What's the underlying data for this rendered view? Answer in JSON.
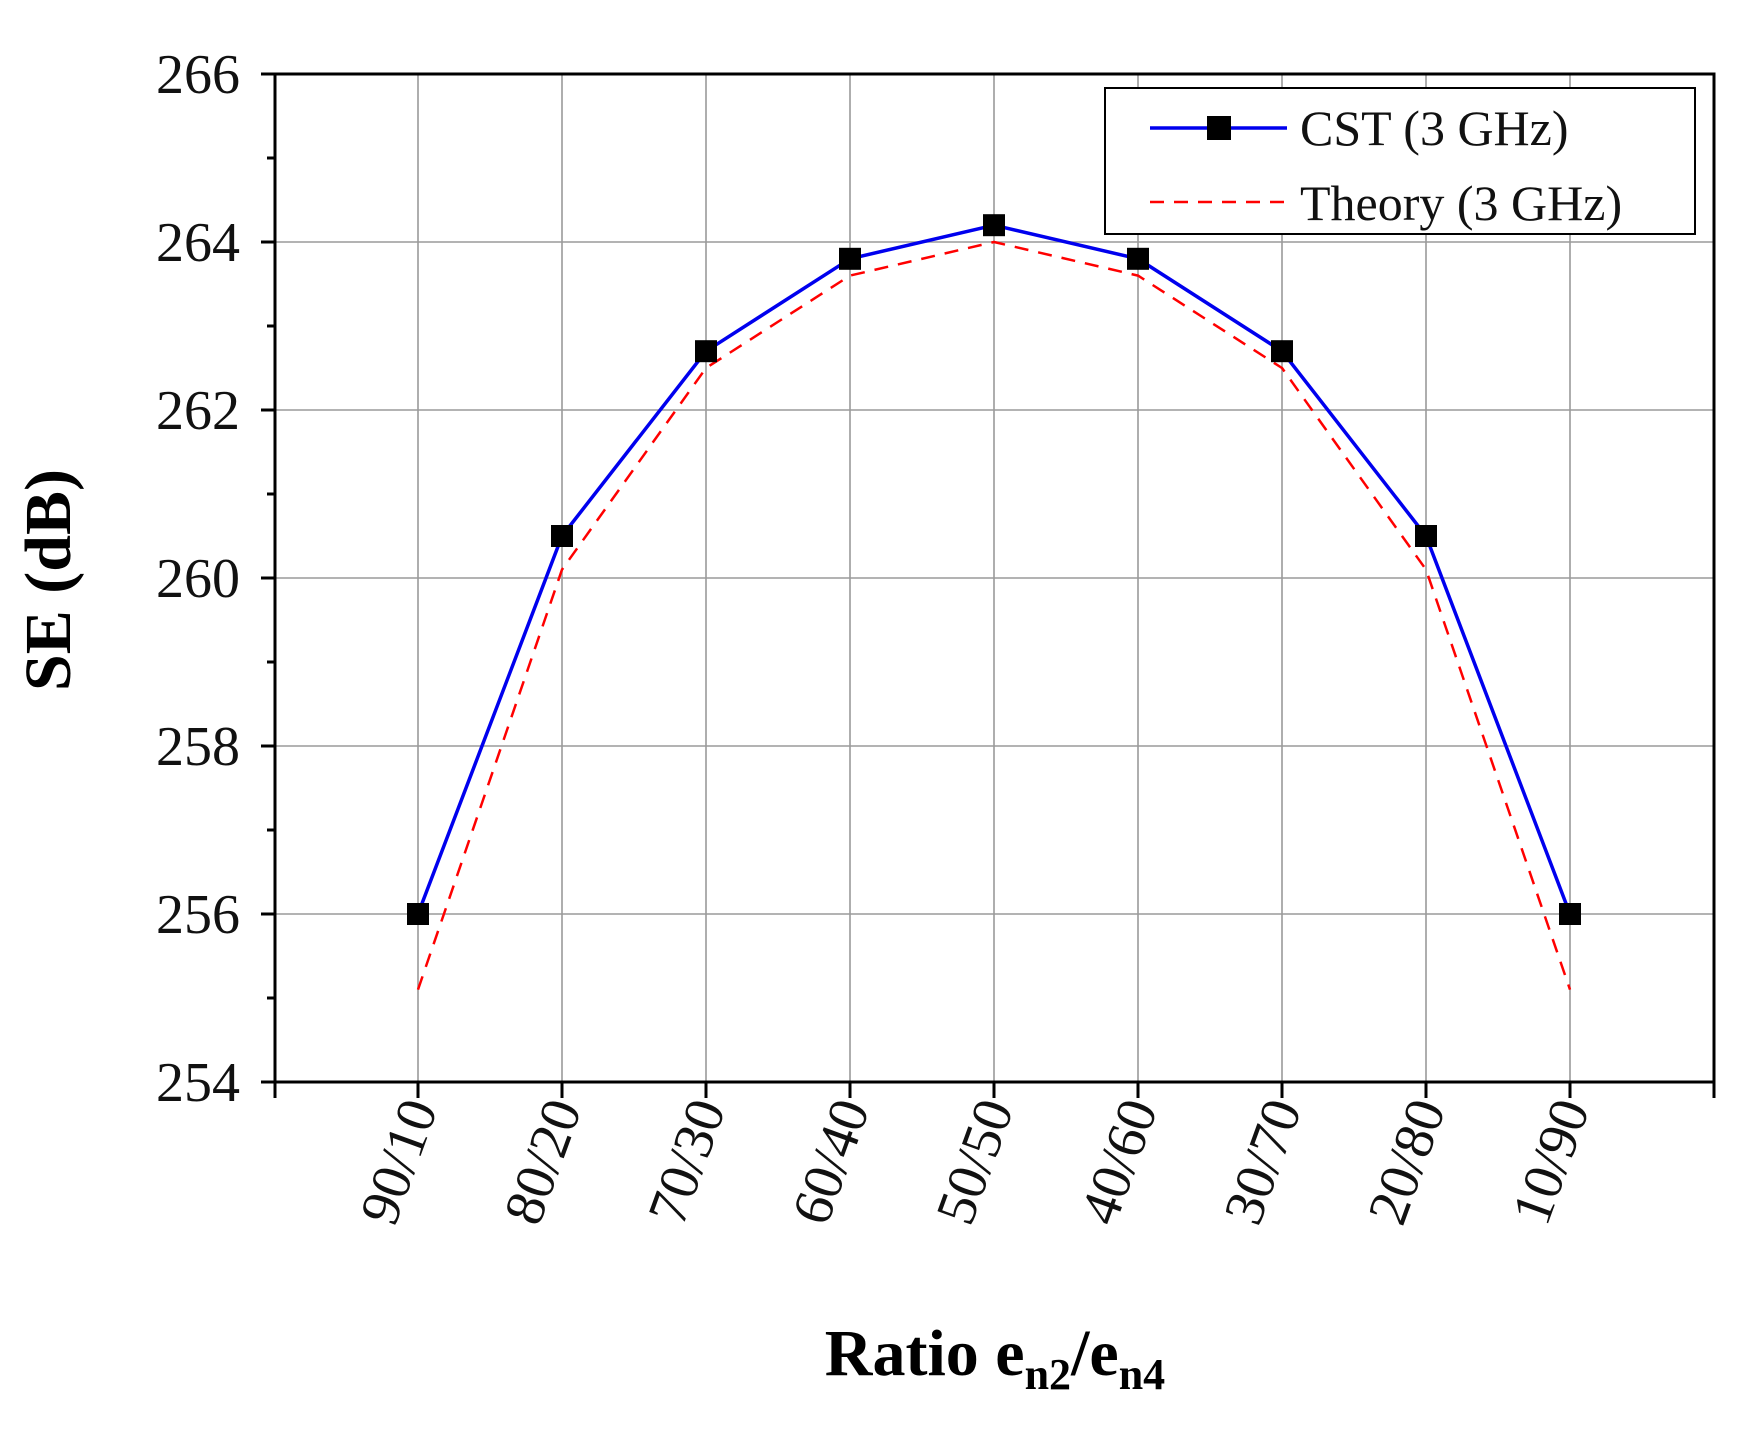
{
  "chart_data": {
    "type": "line",
    "title": "",
    "xlabel": {
      "main": "Ratio e",
      "sub1": "n2",
      "mid": "/e",
      "sub2": "n4"
    },
    "ylabel": "SE (dB)",
    "categories": [
      "90/10",
      "80/20",
      "70/30",
      "60/40",
      "50/50",
      "40/60",
      "30/70",
      "20/80",
      "10/90"
    ],
    "ylim": [
      254,
      266
    ],
    "yticks": [
      "254",
      "256",
      "258",
      "260",
      "262",
      "264",
      "266"
    ],
    "grid": true,
    "legend_position": "top-right",
    "series": [
      {
        "name": "CST (3 GHz)",
        "color": "#0000ee",
        "style": "solid",
        "marker": "square",
        "values": [
          256.0,
          260.5,
          262.7,
          263.8,
          264.2,
          263.8,
          262.7,
          260.5,
          256.0
        ]
      },
      {
        "name": "Theory (3 GHz)",
        "color": "#ff0000",
        "style": "dashed",
        "marker": "none",
        "values": [
          255.1,
          260.1,
          262.5,
          263.6,
          264.0,
          263.6,
          262.5,
          260.1,
          255.1
        ]
      }
    ]
  }
}
